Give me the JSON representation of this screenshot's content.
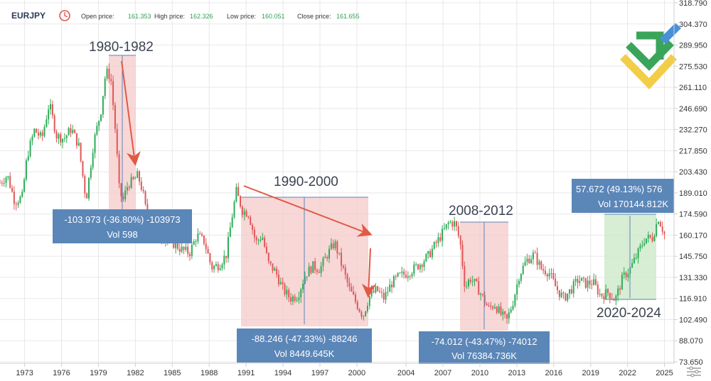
{
  "header": {
    "symbol": "EURJPY",
    "open_label": "Open price:",
    "open_value": "161.353",
    "high_label": "High price:",
    "high_value": "162.326",
    "low_label": "Low price:",
    "low_value": "160.051",
    "close_label": "Close price:",
    "close_value": "161.655",
    "clock_icon": "clock-reload-icon"
  },
  "logo_icon": "litefinance-logo-icon",
  "settings_icon": "chart-settings-icon",
  "colors": {
    "up": "#2eab57",
    "down": "#e05757",
    "arrow": "#e05a45",
    "decline_zone": "#f6c9c9",
    "rise_zone": "#cde8c9",
    "info_box": "#5b86b8",
    "measure_line": "#5b86b8",
    "grid": "#e8e8e8"
  },
  "chart_data": {
    "type": "candlestick",
    "title": "EURJPY",
    "x_ticks": [
      "1973",
      "1976",
      "1979",
      "1982",
      "1985",
      "1988",
      "1991",
      "1994",
      "1997",
      "2000",
      "2004",
      "2007",
      "2010",
      "2013",
      "2016",
      "2019",
      "2022",
      "2025"
    ],
    "y_ticks": [
      "318.790",
      "304.370",
      "289.950",
      "275.530",
      "261.110",
      "246.690",
      "232.270",
      "217.850",
      "203.430",
      "189.010",
      "174.590",
      "160.170",
      "145.750",
      "131.330",
      "116.910",
      "102.490",
      "88.070",
      "73.650"
    ],
    "ylim": [
      73.65,
      318.79
    ],
    "xlim": [
      1971.0,
      2025.2
    ],
    "grid": true,
    "series": [
      {
        "x": [
          1971.0,
          1971.6,
          1972.2,
          1972.8,
          1973.2,
          1973.8,
          1974.4,
          1975.0,
          1975.6,
          1976.2,
          1976.8,
          1977.4,
          1978.0,
          1978.6,
          1979.2,
          1979.6,
          1980.0,
          1980.4,
          1980.7,
          1981.0,
          1981.4,
          1981.8,
          1982.2,
          1982.6,
          1983.0,
          1983.5,
          1984.0,
          1984.6,
          1985.2,
          1985.8,
          1986.4,
          1987.0,
          1987.6,
          1988.2,
          1988.8,
          1989.4,
          1989.8,
          1990.2,
          1990.7,
          1991.2,
          1991.8,
          1992.3,
          1992.8,
          1993.4,
          1994.0,
          1994.6,
          1995.2,
          1995.8,
          1996.4,
          1997.0,
          1997.6,
          1998.2,
          1998.8,
          1999.4,
          2000.0,
          2000.5,
          2001.0,
          2001.6,
          2002.2,
          2002.8,
          2003.4,
          2004.0,
          2004.6,
          2005.2,
          2005.8,
          2006.4,
          2007.0,
          2007.5,
          2008.0,
          2008.4,
          2008.8,
          2009.2,
          2009.7,
          2010.2,
          2010.7,
          2011.2,
          2011.7,
          2012.2,
          2012.7,
          2013.2,
          2013.8,
          2014.4,
          2015.0,
          2015.6,
          2016.2,
          2016.8,
          2017.4,
          2018.0,
          2018.6,
          2019.2,
          2019.8,
          2020.4,
          2021.0,
          2021.6,
          2022.2,
          2022.8,
          2023.4,
          2024.0,
          2024.5,
          2025.0
        ],
        "y": [
          196,
          201,
          183,
          186,
          214,
          232,
          226,
          250,
          228,
          226,
          233,
          221,
          184,
          223,
          245,
          272,
          268,
          229,
          190,
          184,
          195,
          197,
          201,
          190,
          170,
          162,
          161,
          156,
          154,
          150,
          148,
          160,
          156,
          138,
          140,
          147,
          170,
          190,
          177,
          175,
          155,
          160,
          141,
          135,
          123,
          117,
          119,
          133,
          139,
          137,
          147,
          155,
          139,
          123,
          113,
          105,
          118,
          123,
          117,
          127,
          132,
          134,
          137,
          141,
          146,
          154,
          162,
          169,
          168,
          155,
          124,
          131,
          126,
          118,
          110,
          113,
          106,
          102,
          115,
          133,
          143,
          147,
          137,
          135,
          124,
          117,
          123,
          130,
          127,
          128,
          119,
          121,
          116,
          131,
          137,
          147,
          158,
          158,
          172,
          161
        ]
      }
    ],
    "annotations": [
      {
        "period": "1980-1982",
        "change": "-103.973 (-36.80%) -103973",
        "volume": "Vol 598"
      },
      {
        "period": "1990-2000",
        "change": "-88.246 (-47.33%) -88246",
        "volume": "Vol 8449.645K"
      },
      {
        "period": "2008-2012",
        "change": "-74.012 (-43.47%) -74012",
        "volume": "Vol 76384.736K"
      },
      {
        "period": "2020-2024",
        "change": "57.672 (49.13%) 576",
        "volume": "Vol 170144.812K"
      }
    ]
  }
}
